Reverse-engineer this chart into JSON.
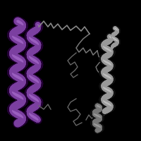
{
  "background_color": "#000000",
  "figsize": [
    2.0,
    2.0
  ],
  "dpi": 100,
  "purple": "#7B3FA0",
  "purple_light": "#9B5FC0",
  "gray": "#999999",
  "gray_light": "#bbbbbb",
  "gray_dark": "#777777",
  "loop_gray": "#555555"
}
